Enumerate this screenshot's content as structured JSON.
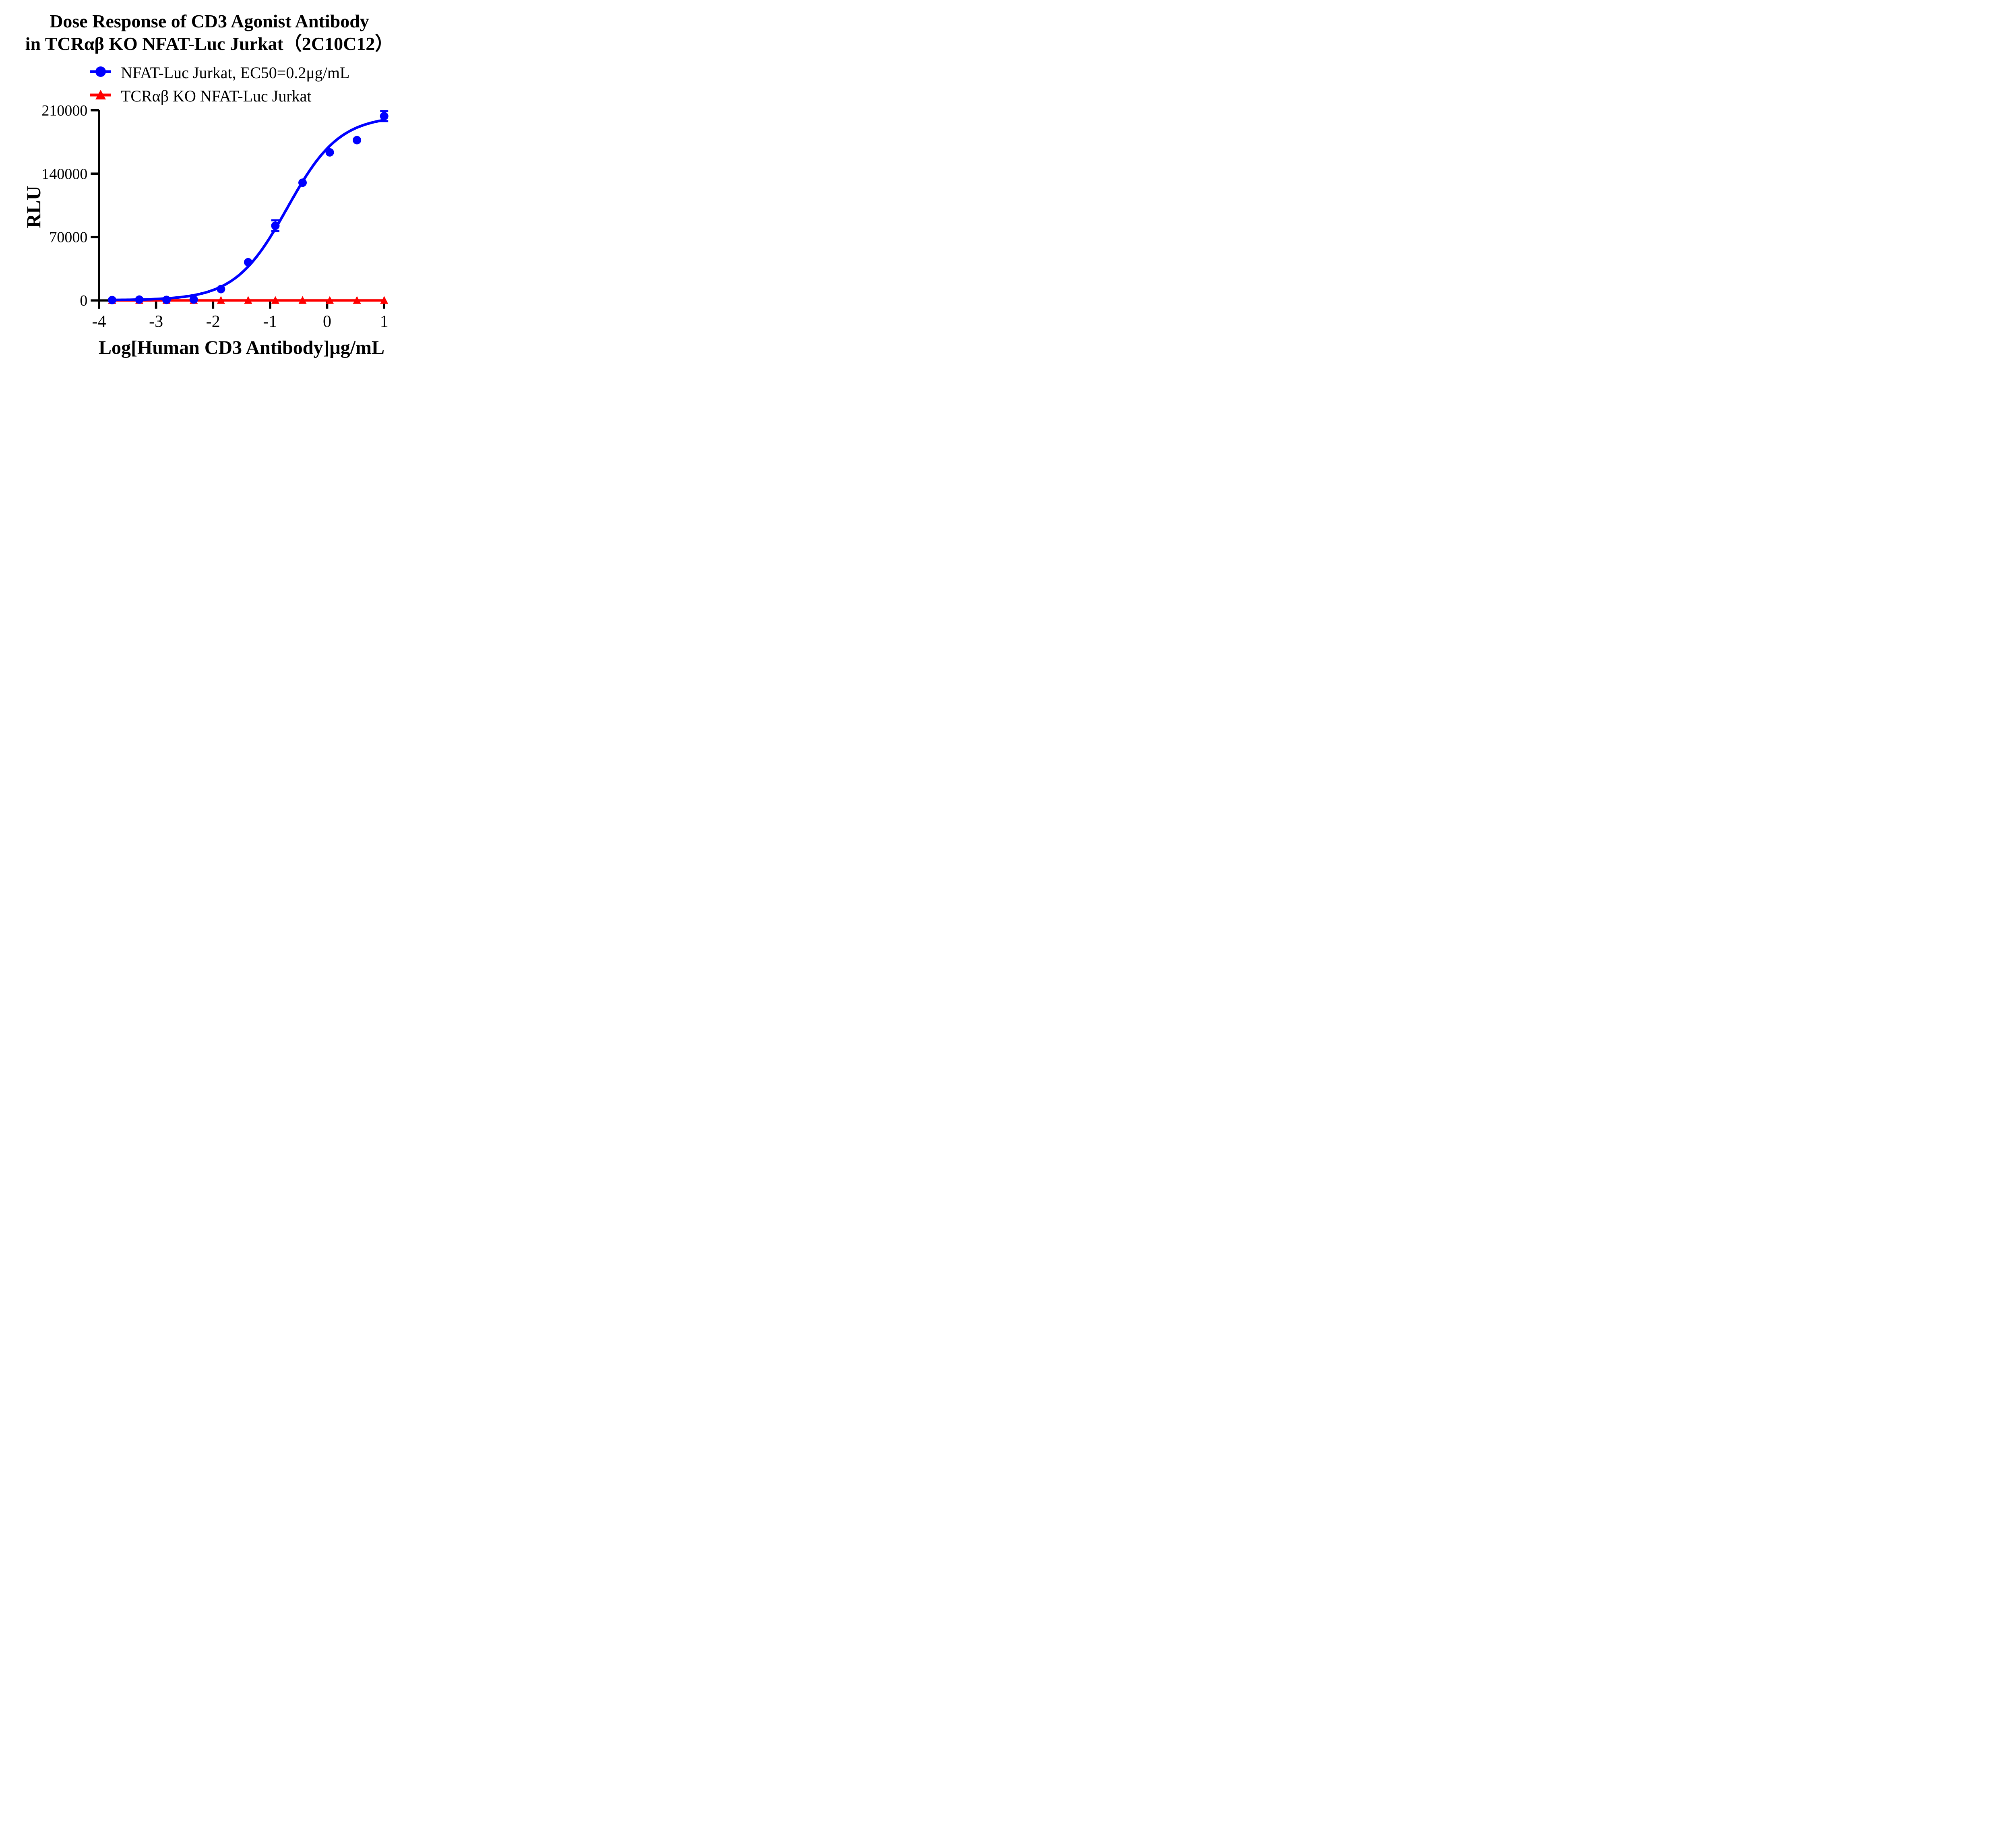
{
  "title": {
    "line1": "Dose Response of CD3 Agonist Antibody",
    "line2": "in TCRαβ KO NFAT-Luc Jurkat（2C10C12）"
  },
  "legend": [
    {
      "label": "NFAT-Luc Jurkat, EC50=0.2μg/mL",
      "marker": "circle",
      "color": "#0000FF"
    },
    {
      "label": "TCRαβ KO NFAT-Luc Jurkat",
      "marker": "triangle",
      "color": "#FF0000"
    }
  ],
  "axes": {
    "x": {
      "label": "Log[Human CD3 Antibody]μg/mL",
      "tick_labels": [
        "-4",
        "-3",
        "-2",
        "-1",
        "0",
        "1"
      ],
      "ticks": [
        -4,
        -3,
        -2,
        -1,
        0,
        1
      ],
      "range": [
        -4,
        1.03
      ]
    },
    "y": {
      "label": "RLU",
      "tick_labels": [
        "0",
        "70000",
        "140000",
        "210000"
      ],
      "ticks": [
        0,
        70000,
        140000,
        210000
      ],
      "range": [
        0,
        210000
      ]
    }
  },
  "chart_data": {
    "type": "line",
    "title": "Dose Response of CD3 Agonist Antibody in TCRαβ KO NFAT-Luc Jurkat（2C10C12）",
    "xlabel": "Log[Human CD3 Antibody]μg/mL",
    "ylabel": "RLU",
    "xlim": [
      -4,
      1.03
    ],
    "ylim": [
      0,
      210000
    ],
    "grid": false,
    "legend_position": "top",
    "x": [
      -3.771,
      -3.294,
      -2.817,
      -2.339,
      -1.862,
      -1.385,
      -0.908,
      -0.431,
      0.046,
      0.523,
      1.0
    ],
    "series": [
      {
        "name": "NFAT-Luc Jurkat, EC50=0.2μg/mL",
        "color": "#0000FF",
        "marker": "circle",
        "values": [
          400,
          900,
          600,
          1000,
          12500,
          42200,
          82500,
          130000,
          163500,
          177000,
          203500
        ],
        "errors": [
          null,
          null,
          null,
          null,
          null,
          null,
          6000,
          null,
          null,
          null,
          5500
        ]
      },
      {
        "name": "TCRαβ KO NFAT-Luc Jurkat",
        "color": "#FF0000",
        "marker": "triangle",
        "values": [
          0,
          0,
          0,
          0,
          0,
          0,
          0,
          0,
          0,
          0,
          0
        ],
        "errors": [
          null,
          null,
          null,
          null,
          null,
          null,
          null,
          null,
          null,
          null,
          null
        ]
      }
    ],
    "fit_curve": {
      "series": "NFAT-Luc Jurkat, EC50=0.2μg/mL",
      "model": "4PL",
      "bottom": 250,
      "top": 204000,
      "logEC50": -0.699,
      "hill": 0.95,
      "x_start": -3.771,
      "x_end": 1.0,
      "ec50_text": "EC50=0.2μg/mL"
    }
  }
}
